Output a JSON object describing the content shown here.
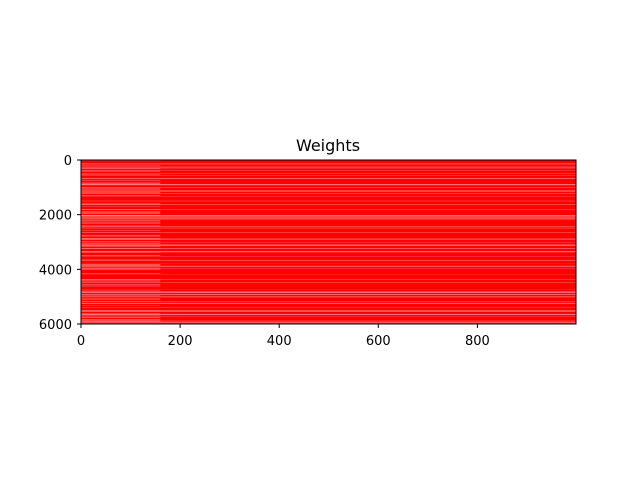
{
  "chart_data": {
    "type": "heatmap",
    "title": "Weights",
    "xlabel": "",
    "ylabel": "",
    "xlim": [
      0,
      999
    ],
    "ylim": [
      6000,
      0
    ],
    "y_inverted": true,
    "x_ticks": [
      0,
      200,
      400,
      600,
      800
    ],
    "y_ticks": [
      0,
      2000,
      4000,
      6000
    ],
    "colormap": "white-to-red",
    "dominant_color": "#ff0000",
    "light_color": "#ff8a8a",
    "grid": false,
    "legend": "none",
    "matrix_shape": [
      6000,
      1000
    ],
    "pattern": "horizontal streaks (row-wise variation); slightly lighter region for columns 0–160"
  }
}
